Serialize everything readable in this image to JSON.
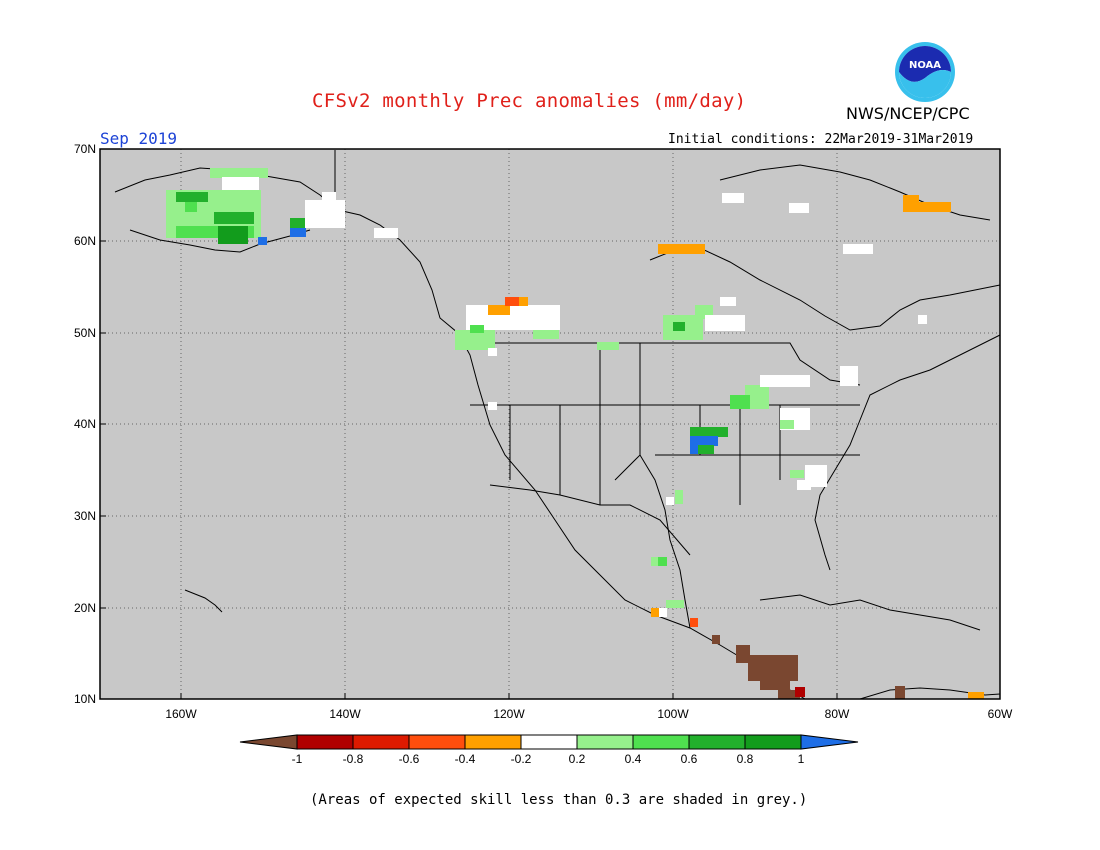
{
  "header": {
    "title": "CFSv2 monthly Prec anomalies (mm/day)",
    "organization": "NWS/NCEP/CPC",
    "logo_text": "NOAA",
    "month": "Sep 2019",
    "initial_conditions": "Initial conditions: 22Mar2019-31Mar2019"
  },
  "map": {
    "background_color": "#c8c8c8",
    "lon_labels": [
      "160W",
      "140W",
      "120W",
      "100W",
      "80W",
      "60W"
    ],
    "lat_labels": [
      "70N",
      "60N",
      "50N",
      "40N",
      "30N",
      "20N",
      "10N"
    ]
  },
  "legend": {
    "labels": [
      "-1",
      "-0.8",
      "-0.6",
      "-0.4",
      "-0.2",
      "0.2",
      "0.4",
      "0.6",
      "0.8",
      "1"
    ],
    "colors": [
      "#7a4730",
      "#b00000",
      "#dd1a00",
      "#ff4e0d",
      "#ffa000",
      "#ffffff",
      "#96f08c",
      "#4fe04f",
      "#22b02c",
      "#129c1c",
      "#1e6ee6"
    ]
  },
  "footer": {
    "note": "(Areas of expected skill less than 0.3 are shaded in grey.)"
  }
}
